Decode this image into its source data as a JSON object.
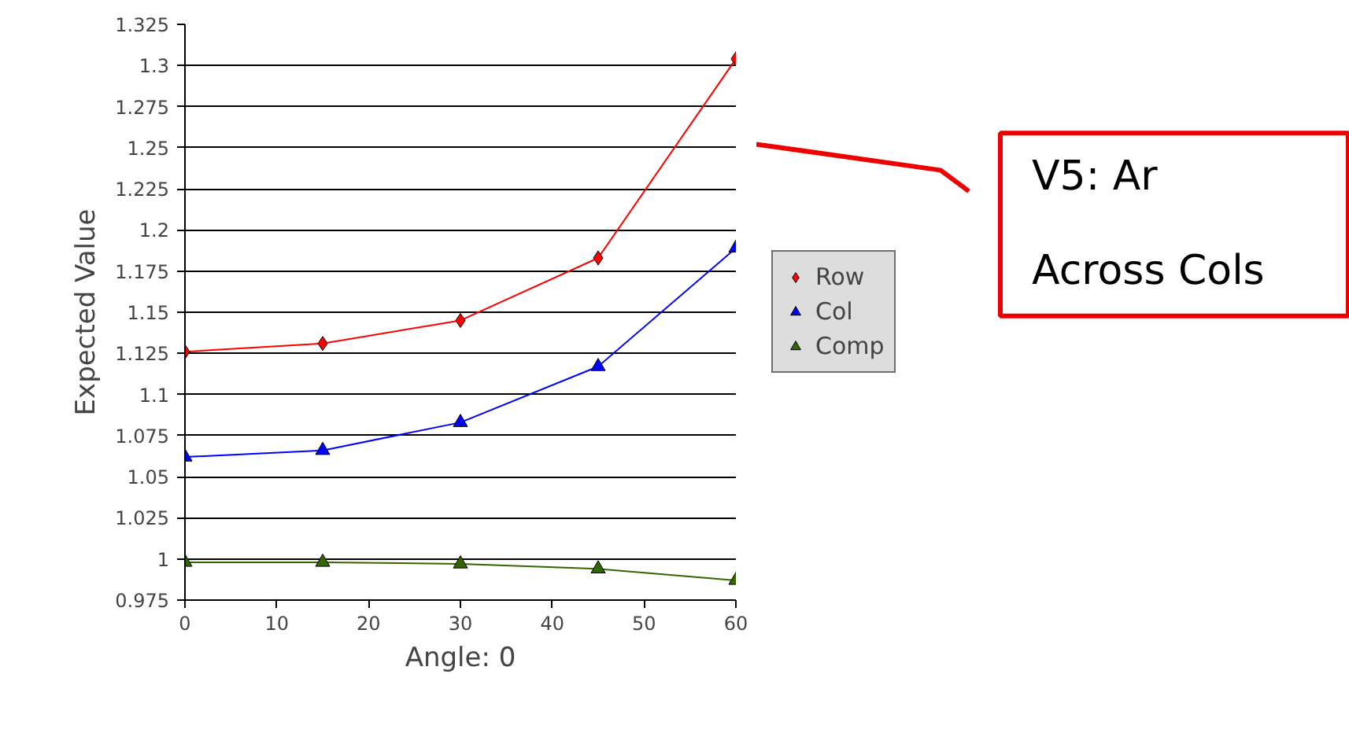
{
  "chart_data": {
    "type": "line",
    "xlabel": "Angle: 0",
    "ylabel": "Expected Value",
    "x": [
      0,
      15,
      30,
      45,
      60
    ],
    "series": [
      {
        "name": "Row",
        "color": "#ff0000",
        "marker": "diamond",
        "values": [
          1.126,
          1.131,
          1.145,
          1.183,
          1.304
        ]
      },
      {
        "name": "Col",
        "color": "#0000ff",
        "marker": "triangle",
        "values": [
          1.062,
          1.066,
          1.083,
          1.117,
          1.189
        ]
      },
      {
        "name": "Comp",
        "color": "#336600",
        "marker": "triangle",
        "values": [
          0.998,
          0.998,
          0.997,
          0.994,
          0.987
        ]
      }
    ],
    "xlim": [
      0,
      60
    ],
    "xticks": [
      0,
      10,
      20,
      30,
      40,
      50,
      60
    ],
    "ylim": [
      0.975,
      1.325
    ],
    "yticks": [
      0.975,
      1,
      1.025,
      1.05,
      1.075,
      1.1,
      1.125,
      1.15,
      1.175,
      1.2,
      1.225,
      1.25,
      1.275,
      1.3,
      1.325
    ],
    "grid": "y",
    "legend": "right",
    "annotations": [
      "V5: Ar\nAcross Cols"
    ]
  }
}
